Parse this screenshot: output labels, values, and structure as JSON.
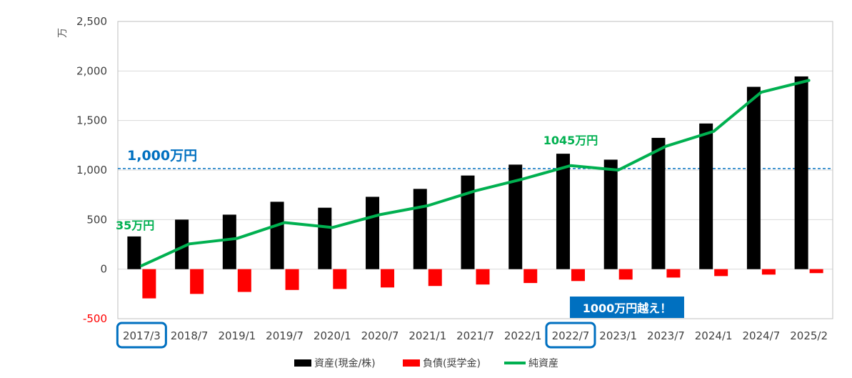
{
  "chart_data": {
    "type": "bar",
    "y_unit_label": "万",
    "categories": [
      "2017/3",
      "2018/7",
      "2019/1",
      "2019/7",
      "2020/1",
      "2020/7",
      "2021/1",
      "2021/7",
      "2022/1",
      "2022/7",
      "2023/1",
      "2023/7",
      "2024/1",
      "2024/7",
      "2025/2"
    ],
    "series": [
      {
        "name": "資産(現金/株)",
        "kind": "bar",
        "color": "#000000",
        "values": [
          330,
          500,
          550,
          680,
          620,
          730,
          810,
          945,
          1055,
          1165,
          1105,
          1325,
          1470,
          1840,
          1945
        ]
      },
      {
        "name": "負債(奨学金)",
        "kind": "bar",
        "color": "#ff0000",
        "values": [
          -295,
          -250,
          -230,
          -210,
          -200,
          -185,
          -170,
          -155,
          -140,
          -120,
          -105,
          -85,
          -70,
          -55,
          -40
        ]
      },
      {
        "name": "純資産",
        "kind": "line",
        "color": "#00b050",
        "values": [
          35,
          255,
          310,
          470,
          420,
          550,
          640,
          790,
          910,
          1045,
          1000,
          1240,
          1390,
          1785,
          1905
        ]
      }
    ],
    "ylim": [
      -500,
      2500
    ],
    "yticks": [
      -500,
      0,
      500,
      1000,
      1500,
      2000,
      2500
    ],
    "ytick_labels": [
      "-500",
      "0",
      "500",
      "1,000",
      "1,500",
      "2,000",
      "2,500"
    ],
    "reference_line": {
      "value": 1015,
      "label": "1,000万円",
      "color": "#0070c0"
    },
    "annotations": [
      {
        "text": "35万円",
        "category_index": 0,
        "color": "#00b050"
      },
      {
        "text": "1045万円",
        "category_index": 9,
        "color": "#00b050"
      },
      {
        "text": "1000万円越え！",
        "category_index": 9,
        "style": "box",
        "color": "#0070c0"
      }
    ],
    "highlighted_categories": [
      0,
      9
    ],
    "highlight_color": "#0070c0",
    "grid": true,
    "legend_position": "bottom"
  }
}
